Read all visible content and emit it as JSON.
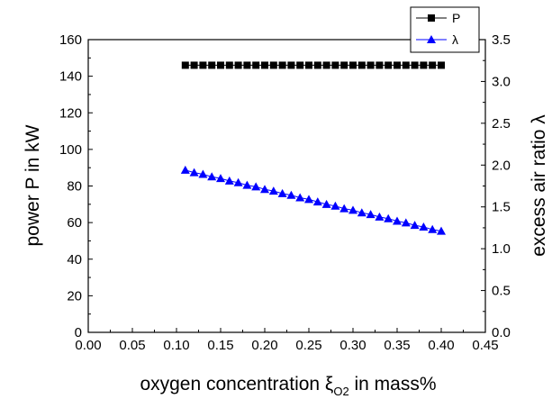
{
  "chart_data": {
    "type": "scatter",
    "xlabel_main": "oxygen concentration ξ",
    "xlabel_sub": "O2",
    "xlabel_tail": " in mass%",
    "ylabel_left": "power P in kW",
    "ylabel_right": "excess air ratio λ",
    "xlim": [
      0.0,
      0.45
    ],
    "ylim_left": [
      0,
      160
    ],
    "ylim_right": [
      0.0,
      3.5
    ],
    "x_ticks": [
      "0.00",
      "0.05",
      "0.10",
      "0.15",
      "0.20",
      "0.25",
      "0.30",
      "0.35",
      "0.40",
      "0.45"
    ],
    "y_left_ticks": [
      "0",
      "20",
      "40",
      "60",
      "80",
      "100",
      "120",
      "140",
      "160"
    ],
    "y_right_ticks": [
      "0.0",
      "0.5",
      "1.0",
      "1.5",
      "2.0",
      "2.5",
      "3.0",
      "3.5"
    ],
    "legend_position": "top-right",
    "series": [
      {
        "name": "P",
        "axis": "left",
        "marker": "square",
        "color": "#000000",
        "x": [
          0.11,
          0.12,
          0.13,
          0.14,
          0.15,
          0.16,
          0.17,
          0.18,
          0.19,
          0.2,
          0.21,
          0.22,
          0.23,
          0.24,
          0.25,
          0.26,
          0.27,
          0.28,
          0.29,
          0.3,
          0.31,
          0.32,
          0.33,
          0.34,
          0.35,
          0.36,
          0.37,
          0.38,
          0.39,
          0.4
        ],
        "y": [
          146,
          146,
          146,
          146,
          146,
          146,
          146,
          146,
          146,
          146,
          146,
          146,
          146,
          146,
          146,
          146,
          146,
          146,
          146,
          146,
          146,
          146,
          146,
          146,
          146,
          146,
          146,
          146,
          146,
          146
        ]
      },
      {
        "name": "λ",
        "axis": "right",
        "marker": "triangle",
        "color": "#0000ff",
        "x": [
          0.11,
          0.12,
          0.13,
          0.14,
          0.15,
          0.16,
          0.17,
          0.18,
          0.19,
          0.2,
          0.21,
          0.22,
          0.23,
          0.24,
          0.25,
          0.26,
          0.27,
          0.28,
          0.29,
          0.3,
          0.31,
          0.32,
          0.33,
          0.34,
          0.35,
          0.36,
          0.37,
          0.38,
          0.39,
          0.4
        ],
        "y": [
          1.94,
          1.91,
          1.89,
          1.86,
          1.84,
          1.81,
          1.79,
          1.76,
          1.74,
          1.71,
          1.69,
          1.66,
          1.64,
          1.61,
          1.59,
          1.56,
          1.53,
          1.51,
          1.48,
          1.46,
          1.43,
          1.41,
          1.38,
          1.36,
          1.33,
          1.31,
          1.28,
          1.26,
          1.23,
          1.21
        ]
      }
    ]
  }
}
